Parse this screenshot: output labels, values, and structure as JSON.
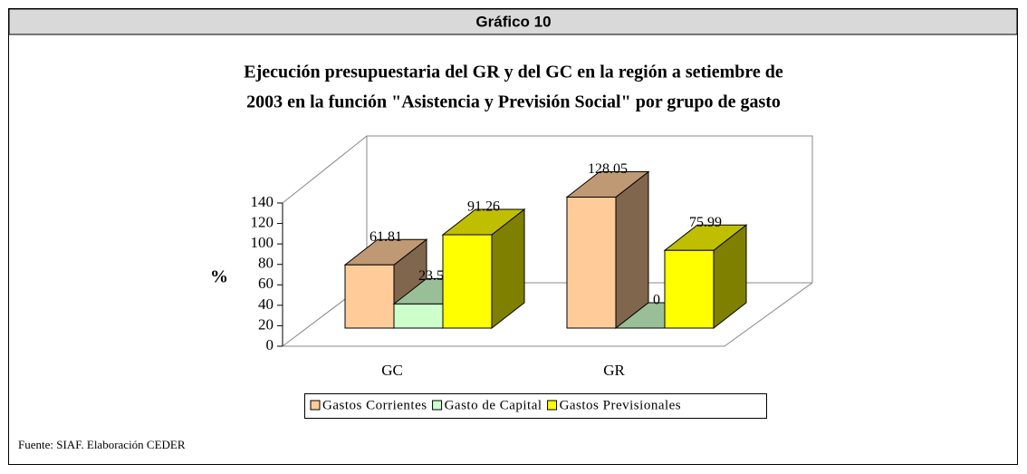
{
  "header": "Gráfico 10",
  "chart_data": {
    "type": "bar3d",
    "title_lines": [
      "Ejecución presupuestaria del GR y del GC en la región a setiembre de",
      "2003 en la función \"Asistencia y Previsión Social\" por grupo de gasto"
    ],
    "ylabel": "%",
    "categories": [
      "GC",
      "GR"
    ],
    "series": [
      {
        "name": "Gastos Corrientes",
        "color": "#FFCC99",
        "values": [
          61.81,
          128.05
        ]
      },
      {
        "name": "Gasto de Capital",
        "color": "#CCFFCC",
        "values": [
          23.58,
          0
        ]
      },
      {
        "name": "Gastos Previsionales",
        "color": "#FFFF00",
        "values": [
          91.26,
          75.99
        ]
      }
    ],
    "ylim": [
      0,
      140
    ],
    "yticks": [
      0,
      20,
      40,
      60,
      80,
      100,
      120,
      140
    ]
  },
  "source": "Fuente:  SIAF.  Elaboración CEDER"
}
